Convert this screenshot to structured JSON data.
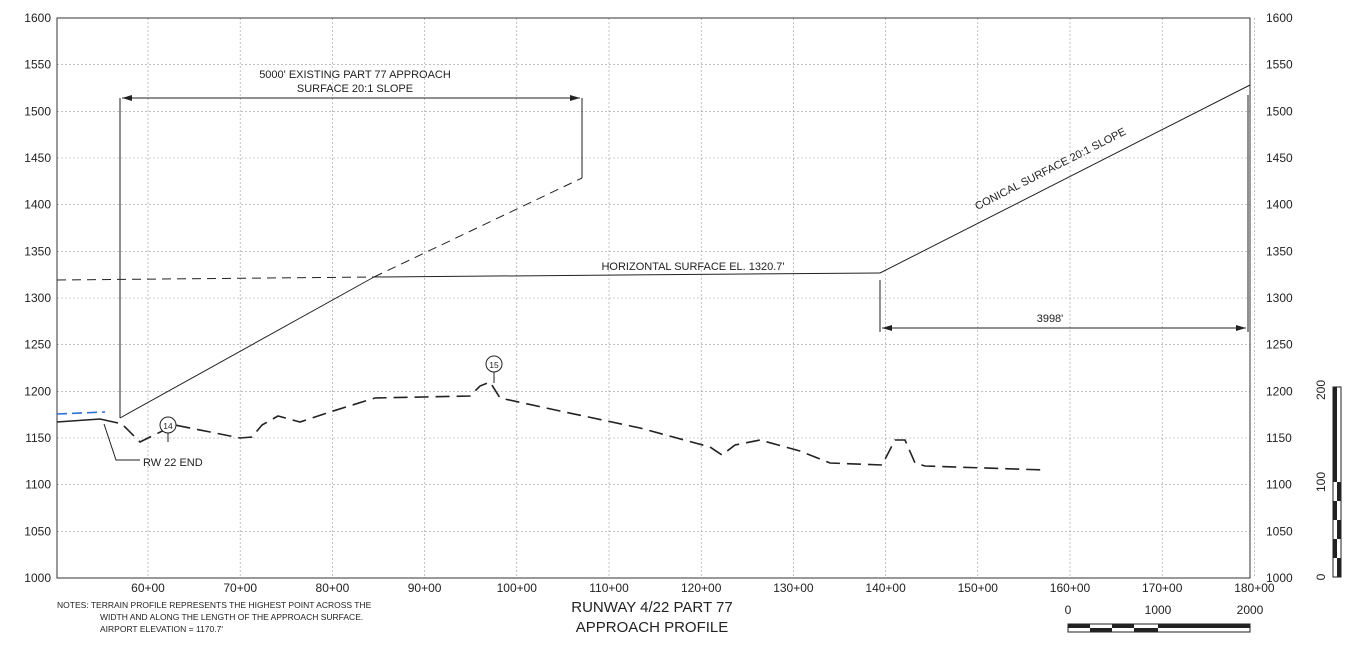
{
  "x_axis": {
    "ticks": [
      "60+00",
      "70+00",
      "80+00",
      "90+00",
      "100+00",
      "110+00",
      "120+00",
      "130+00",
      "140+00",
      "150+00",
      "160+00",
      "170+00",
      "180+00"
    ]
  },
  "y_axis_left": {
    "ticks": [
      "1000",
      "1050",
      "1100",
      "1150",
      "1200",
      "1250",
      "1300",
      "1350",
      "1400",
      "1450",
      "1500",
      "1550",
      "1600"
    ]
  },
  "y_axis_right": {
    "ticks": [
      "1000",
      "1050",
      "1100",
      "1150",
      "1200",
      "1250",
      "1300",
      "1350",
      "1400",
      "1450",
      "1500",
      "1550",
      "1600"
    ]
  },
  "annotations": {
    "approach_line1": "5000' EXISTING PART 77 APPROACH",
    "approach_line2": "SURFACE 20:1 SLOPE",
    "horizontal_surface": "HORIZONTAL SURFACE EL. 1320.7'",
    "conical_surface": "CONICAL SURFACE 20:1 SLOPE",
    "dimension_3998": "3998'",
    "rw22_end": "RW 22 END",
    "marker_14": "14",
    "marker_15": "15"
  },
  "title": {
    "line1": "RUNWAY 4/22 PART 77",
    "line2": "APPROACH PROFILE"
  },
  "notes": {
    "line1": "NOTES:  TERRAIN PROFILE REPRESENTS THE HIGHEST POINT ACROSS THE",
    "line2": "WIDTH AND ALONG THE LENGTH OF THE APPROACH SURFACE.",
    "line3": "AIRPORT ELEVATION = 1170.7'"
  },
  "horizontal_scale": {
    "labels": [
      "0",
      "1000",
      "2000"
    ]
  },
  "vertical_scale": {
    "labels": [
      "0",
      "100",
      "200"
    ]
  },
  "colors": {
    "line": "#222222",
    "grid": "#9a9a9a",
    "accent_blue": "#2a6fd6"
  }
}
